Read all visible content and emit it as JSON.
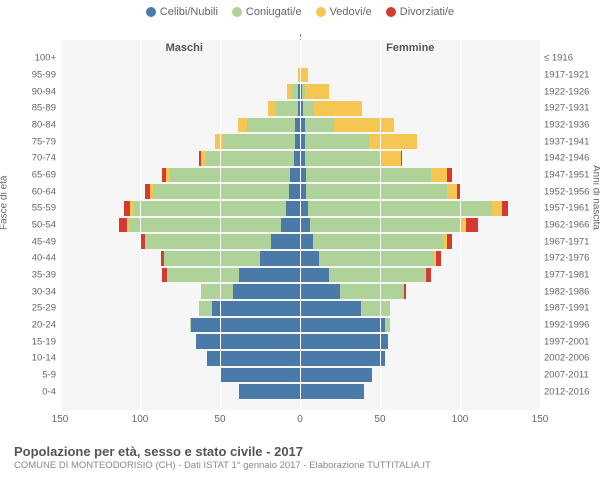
{
  "legend": [
    {
      "label": "Celibi/Nubili",
      "color": "#4a7aa8"
    },
    {
      "label": "Coniugati/e",
      "color": "#aed298"
    },
    {
      "label": "Vedovi/e",
      "color": "#f6c653"
    },
    {
      "label": "Divorziati/e",
      "color": "#d43a2f"
    }
  ],
  "sides": {
    "left": "Maschi",
    "right": "Femmine"
  },
  "axis_titles": {
    "left": "Fasce di età",
    "right": "Anni di nascita"
  },
  "x": {
    "min": -150,
    "max": 150,
    "ticks": [
      150,
      100,
      50,
      0,
      50,
      100,
      150
    ],
    "tick_positions": [
      -150,
      -100,
      -50,
      0,
      50,
      100,
      150
    ]
  },
  "colors": {
    "plot_bg": "#f6f6f6",
    "grid": "#ffffff",
    "center": "#888888",
    "text": "#666666"
  },
  "age_groups": [
    {
      "age": "100+",
      "birth": "≤ 1916",
      "m": {
        "c": 0,
        "co": 0,
        "v": 0,
        "d": 0
      },
      "f": {
        "c": 0,
        "co": 0,
        "v": 0,
        "d": 0
      }
    },
    {
      "age": "95-99",
      "birth": "1917-1921",
      "m": {
        "c": 0,
        "co": 0,
        "v": 1,
        "d": 0
      },
      "f": {
        "c": 0,
        "co": 0,
        "v": 5,
        "d": 0
      }
    },
    {
      "age": "90-94",
      "birth": "1922-1926",
      "m": {
        "c": 1,
        "co": 4,
        "v": 3,
        "d": 0
      },
      "f": {
        "c": 1,
        "co": 2,
        "v": 15,
        "d": 0
      }
    },
    {
      "age": "85-89",
      "birth": "1927-1931",
      "m": {
        "c": 1,
        "co": 14,
        "v": 5,
        "d": 0
      },
      "f": {
        "c": 2,
        "co": 7,
        "v": 30,
        "d": 0
      }
    },
    {
      "age": "80-84",
      "birth": "1932-1936",
      "m": {
        "c": 3,
        "co": 30,
        "v": 6,
        "d": 0
      },
      "f": {
        "c": 3,
        "co": 18,
        "v": 38,
        "d": 0
      }
    },
    {
      "age": "75-79",
      "birth": "1937-1941",
      "m": {
        "c": 3,
        "co": 45,
        "v": 5,
        "d": 0
      },
      "f": {
        "c": 3,
        "co": 40,
        "v": 30,
        "d": 0
      }
    },
    {
      "age": "70-74",
      "birth": "1942-1946",
      "m": {
        "c": 4,
        "co": 55,
        "v": 3,
        "d": 1
      },
      "f": {
        "c": 3,
        "co": 48,
        "v": 12,
        "d": 1
      }
    },
    {
      "age": "65-69",
      "birth": "1947-1951",
      "m": {
        "c": 6,
        "co": 75,
        "v": 3,
        "d": 2
      },
      "f": {
        "c": 4,
        "co": 78,
        "v": 10,
        "d": 3
      }
    },
    {
      "age": "60-64",
      "birth": "1952-1956",
      "m": {
        "c": 7,
        "co": 85,
        "v": 2,
        "d": 3
      },
      "f": {
        "c": 4,
        "co": 88,
        "v": 6,
        "d": 2
      }
    },
    {
      "age": "55-59",
      "birth": "1957-1961",
      "m": {
        "c": 9,
        "co": 95,
        "v": 2,
        "d": 4
      },
      "f": {
        "c": 5,
        "co": 115,
        "v": 6,
        "d": 4
      }
    },
    {
      "age": "50-54",
      "birth": "1962-1966",
      "m": {
        "c": 12,
        "co": 95,
        "v": 1,
        "d": 5
      },
      "f": {
        "c": 6,
        "co": 95,
        "v": 3,
        "d": 7
      }
    },
    {
      "age": "45-49",
      "birth": "1967-1971",
      "m": {
        "c": 18,
        "co": 78,
        "v": 1,
        "d": 3
      },
      "f": {
        "c": 8,
        "co": 82,
        "v": 2,
        "d": 3
      }
    },
    {
      "age": "40-44",
      "birth": "1972-1976",
      "m": {
        "c": 25,
        "co": 60,
        "v": 0,
        "d": 2
      },
      "f": {
        "c": 12,
        "co": 72,
        "v": 1,
        "d": 3
      }
    },
    {
      "age": "35-39",
      "birth": "1977-1981",
      "m": {
        "c": 38,
        "co": 45,
        "v": 0,
        "d": 3
      },
      "f": {
        "c": 18,
        "co": 60,
        "v": 1,
        "d": 3
      }
    },
    {
      "age": "30-34",
      "birth": "1982-1986",
      "m": {
        "c": 42,
        "co": 20,
        "v": 0,
        "d": 0
      },
      "f": {
        "c": 25,
        "co": 40,
        "v": 0,
        "d": 1
      }
    },
    {
      "age": "25-29",
      "birth": "1987-1991",
      "m": {
        "c": 55,
        "co": 8,
        "v": 0,
        "d": 0
      },
      "f": {
        "c": 38,
        "co": 18,
        "v": 0,
        "d": 0
      }
    },
    {
      "age": "20-24",
      "birth": "1992-1996",
      "m": {
        "c": 68,
        "co": 1,
        "v": 0,
        "d": 0
      },
      "f": {
        "c": 53,
        "co": 3,
        "v": 0,
        "d": 0
      }
    },
    {
      "age": "15-19",
      "birth": "1997-2001",
      "m": {
        "c": 65,
        "co": 0,
        "v": 0,
        "d": 0
      },
      "f": {
        "c": 55,
        "co": 0,
        "v": 0,
        "d": 0
      }
    },
    {
      "age": "10-14",
      "birth": "2002-2006",
      "m": {
        "c": 58,
        "co": 0,
        "v": 0,
        "d": 0
      },
      "f": {
        "c": 53,
        "co": 0,
        "v": 0,
        "d": 0
      }
    },
    {
      "age": "5-9",
      "birth": "2007-2011",
      "m": {
        "c": 50,
        "co": 0,
        "v": 0,
        "d": 0
      },
      "f": {
        "c": 45,
        "co": 0,
        "v": 0,
        "d": 0
      }
    },
    {
      "age": "0-4",
      "birth": "2012-2016",
      "m": {
        "c": 38,
        "co": 0,
        "v": 0,
        "d": 0
      },
      "f": {
        "c": 40,
        "co": 0,
        "v": 0,
        "d": 0
      }
    }
  ],
  "footer": {
    "title": "Popolazione per età, sesso e stato civile - 2017",
    "sub": "COMUNE DI MONTEODORISIO (CH) - Dati ISTAT 1° gennaio 2017 - Elaborazione TUTTITALIA.IT"
  }
}
